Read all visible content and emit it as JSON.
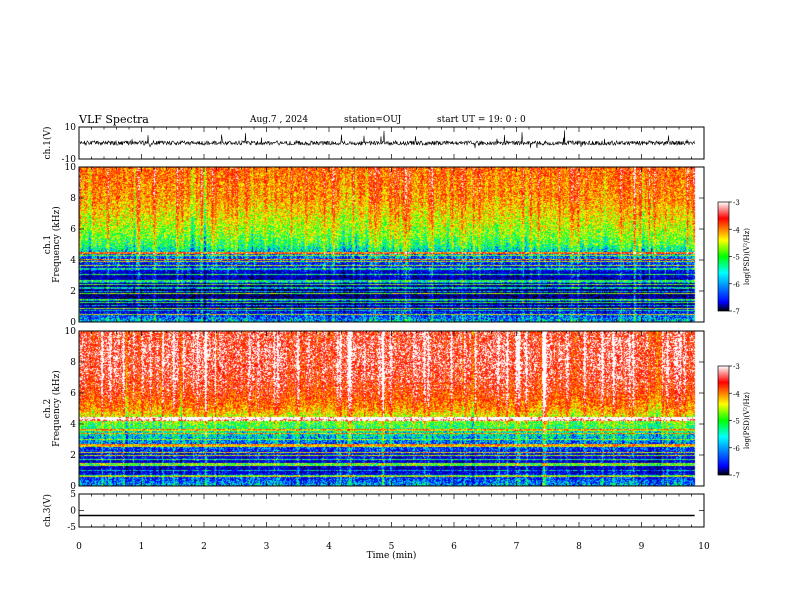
{
  "header": {
    "title": "VLF Spectra",
    "date": "Aug.7 , 2024",
    "station": "station=OUJ",
    "start": "start UT = 19: 0 : 0"
  },
  "chart_data": [
    {
      "type": "line",
      "panel": "ch1-waveform",
      "ylabel": "ch.1(V)",
      "ylim": [
        -10,
        10
      ],
      "yticks": [
        "10",
        "-10"
      ],
      "xlim": [
        0,
        10
      ],
      "baseline": 0,
      "approx_amplitude": 3,
      "data_end_min": 9.85
    },
    {
      "type": "heatmap",
      "panel": "ch1-spectrogram",
      "ylabel": "ch.1 Frequency (kHz)",
      "ylabel_lines": [
        "ch.1",
        "Frequency (kHz)"
      ],
      "ylim": [
        0,
        10
      ],
      "yticks": [
        "0",
        "2",
        "4",
        "6",
        "8",
        "10"
      ],
      "xlim": [
        0,
        10
      ],
      "data_end_min": 9.85,
      "description_profile": [
        {
          "f_khz": 0,
          "log_psd": -5.5
        },
        {
          "f_khz": 1,
          "log_psd": -6.6
        },
        {
          "f_khz": 2,
          "log_psd": -6.7
        },
        {
          "f_khz": 3,
          "log_psd": -6.4
        },
        {
          "f_khz": 4,
          "log_psd": -5.9
        },
        {
          "f_khz": 5,
          "log_psd": -5.0
        },
        {
          "f_khz": 6,
          "log_psd": -4.6
        },
        {
          "f_khz": 7,
          "log_psd": -4.3
        },
        {
          "f_khz": 8,
          "log_psd": -4.0
        },
        {
          "f_khz": 9,
          "log_psd": -3.9
        },
        {
          "f_khz": 10,
          "log_psd": -3.8
        }
      ],
      "colorbar": {
        "label": "log(PSD)(V²/Hz)",
        "range": [
          -7,
          -3
        ],
        "ticks": [
          "-3",
          "-4",
          "-5",
          "-6",
          "-7"
        ],
        "colors": [
          "#000000",
          "#0000ff",
          "#00ffff",
          "#00ff00",
          "#ffff00",
          "#ff0000",
          "#ffffff"
        ]
      }
    },
    {
      "type": "heatmap",
      "panel": "ch2-spectrogram",
      "ylabel": "ch.2 Frequency (kHz)",
      "ylabel_lines": [
        "ch.2",
        "Frequency (kHz)"
      ],
      "ylim": [
        0,
        10
      ],
      "yticks": [
        "0",
        "2",
        "4",
        "6",
        "8",
        "10"
      ],
      "xlim": [
        0,
        10
      ],
      "data_end_min": 9.85,
      "description_profile": [
        {
          "f_khz": 0,
          "log_psd": -5.6
        },
        {
          "f_khz": 1,
          "log_psd": -6.4
        },
        {
          "f_khz": 2,
          "log_psd": -6.2
        },
        {
          "f_khz": 3,
          "log_psd": -5.6
        },
        {
          "f_khz": 4,
          "log_psd": -4.9
        },
        {
          "f_khz": 5,
          "log_psd": -4.0
        },
        {
          "f_khz": 6,
          "log_psd": -3.6
        },
        {
          "f_khz": 7,
          "log_psd": -3.4
        },
        {
          "f_khz": 8,
          "log_psd": -3.3
        },
        {
          "f_khz": 9,
          "log_psd": -3.3
        },
        {
          "f_khz": 10,
          "log_psd": -3.4
        }
      ],
      "colorbar": {
        "label": "log(PSD)(V²/Hz)",
        "range": [
          -7,
          -3
        ],
        "ticks": [
          "-3",
          "-4",
          "-5",
          "-6",
          "-7"
        ],
        "colors": [
          "#000000",
          "#0000ff",
          "#00ffff",
          "#00ff00",
          "#ffff00",
          "#ff0000",
          "#ffffff"
        ]
      }
    },
    {
      "type": "line",
      "panel": "ch3-waveform",
      "ylabel": "ch.3(V)",
      "ylim": [
        -5,
        5
      ],
      "yticks": [
        "5",
        "0",
        "-5"
      ],
      "xlim": [
        0,
        10
      ],
      "value": -1.5,
      "data_end_min": 9.85,
      "xlabel": "Time (min)",
      "xticks": [
        "0",
        "1",
        "2",
        "3",
        "4",
        "5",
        "6",
        "7",
        "8",
        "9",
        "10"
      ]
    }
  ]
}
